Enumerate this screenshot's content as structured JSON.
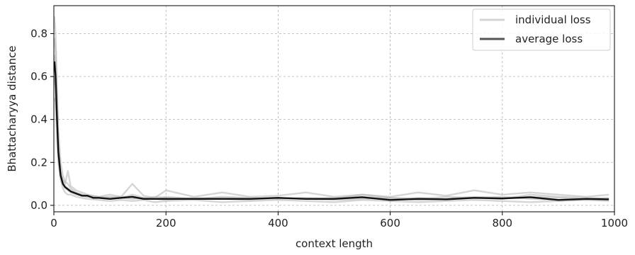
{
  "chart_data": {
    "type": "line",
    "xlabel": "context length",
    "ylabel": "Bhattacharyya distance",
    "xlim": [
      0,
      1000
    ],
    "ylim": [
      -0.03,
      0.93
    ],
    "x_ticks": [
      0,
      200,
      400,
      600,
      800,
      1000
    ],
    "y_ticks": [
      0.0,
      0.2,
      0.4,
      0.6,
      0.8
    ],
    "grid": true,
    "legend_position": "top-right",
    "colors": {
      "individual": "#b3b3b3",
      "average": "#111111"
    },
    "series": [
      {
        "name": "individual loss",
        "style": "light-gray, many overlapping runs",
        "runs": [
          {
            "x": [
              1,
              3,
              5,
              8,
              12,
              16,
              20,
              25,
              30,
              40,
              50,
              60,
              80,
              100,
              120,
              140,
              160,
              180,
              200,
              250,
              300,
              350,
              400,
              450,
              500,
              550,
              600,
              650,
              700,
              750,
              800,
              850,
              900,
              950,
              990
            ],
            "y": [
              0.88,
              0.8,
              0.6,
              0.35,
              0.2,
              0.14,
              0.11,
              0.1,
              0.08,
              0.06,
              0.05,
              0.04,
              0.035,
              0.04,
              0.035,
              0.05,
              0.035,
              0.03,
              0.04,
              0.03,
              0.035,
              0.03,
              0.035,
              0.03,
              0.035,
              0.04,
              0.03,
              0.035,
              0.03,
              0.04,
              0.035,
              0.04,
              0.035,
              0.03,
              0.035
            ]
          },
          {
            "x": [
              1,
              3,
              5,
              8,
              12,
              16,
              20,
              25,
              30,
              40,
              50,
              60,
              80,
              100,
              120,
              140,
              160,
              180,
              200,
              250,
              300,
              350,
              400,
              450,
              500,
              550,
              600,
              650,
              700,
              750,
              800,
              850,
              900,
              950,
              990
            ],
            "y": [
              0.78,
              0.72,
              0.55,
              0.3,
              0.16,
              0.12,
              0.1,
              0.16,
              0.09,
              0.07,
              0.06,
              0.05,
              0.04,
              0.05,
              0.04,
              0.1,
              0.045,
              0.035,
              0.07,
              0.04,
              0.06,
              0.04,
              0.045,
              0.06,
              0.04,
              0.05,
              0.04,
              0.06,
              0.045,
              0.07,
              0.05,
              0.06,
              0.05,
              0.04,
              0.05
            ]
          },
          {
            "x": [
              1,
              3,
              5,
              8,
              12,
              16,
              20,
              25,
              30,
              40,
              50,
              60,
              80,
              100,
              120,
              140,
              160,
              180,
              200,
              250,
              300,
              350,
              400,
              450,
              500,
              550,
              600,
              650,
              700,
              750,
              800,
              850,
              900,
              950,
              990
            ],
            "y": [
              0.7,
              0.65,
              0.45,
              0.22,
              0.12,
              0.08,
              0.06,
              0.05,
              0.05,
              0.04,
              0.035,
              0.03,
              0.025,
              0.02,
              0.025,
              0.02,
              0.025,
              0.015,
              0.02,
              0.025,
              0.015,
              0.02,
              0.025,
              0.02,
              0.015,
              0.025,
              0.02,
              0.015,
              0.02,
              0.025,
              0.02,
              0.015,
              0.02,
              0.025,
              0.02
            ]
          },
          {
            "x": [
              1,
              3,
              5,
              8,
              12,
              16,
              20,
              25,
              30,
              40,
              50,
              60,
              80,
              100,
              120,
              140,
              160,
              180,
              200,
              250,
              300,
              350,
              400,
              450,
              500,
              550,
              600,
              650,
              700,
              750,
              800,
              850,
              900,
              950,
              990
            ],
            "y": [
              0.6,
              0.55,
              0.4,
              0.25,
              0.15,
              0.11,
              0.09,
              0.08,
              0.07,
              0.055,
              0.05,
              0.045,
              0.04,
              0.035,
              0.04,
              0.035,
              0.03,
              0.04,
              0.035,
              0.03,
              0.04,
              0.035,
              0.03,
              0.035,
              0.03,
              0.05,
              0.035,
              0.03,
              0.04,
              0.035,
              0.03,
              0.05,
              0.04,
              0.035,
              0.03
            ]
          },
          {
            "x": [
              1,
              3,
              5,
              8,
              12,
              16,
              20,
              25,
              30,
              40,
              50,
              60,
              80,
              100,
              120,
              140,
              160,
              180,
              200,
              250,
              300,
              350,
              400,
              450,
              500,
              550,
              600,
              650,
              700,
              750,
              800,
              850,
              900,
              950,
              990
            ],
            "y": [
              0.5,
              0.48,
              0.35,
              0.2,
              0.13,
              0.1,
              0.08,
              0.07,
              0.06,
              0.05,
              0.045,
              0.04,
              0.035,
              0.03,
              0.035,
              0.03,
              0.035,
              0.03,
              0.025,
              0.035,
              0.03,
              0.025,
              0.035,
              0.03,
              0.025,
              0.03,
              0.035,
              0.025,
              0.03,
              0.035,
              0.04,
              0.03,
              0.025,
              0.03,
              0.025
            ]
          }
        ]
      },
      {
        "name": "average loss",
        "x": [
          1,
          3,
          5,
          8,
          12,
          16,
          20,
          25,
          30,
          40,
          50,
          60,
          70,
          80,
          100,
          120,
          140,
          160,
          180,
          200,
          250,
          300,
          350,
          400,
          450,
          500,
          550,
          600,
          650,
          700,
          750,
          800,
          850,
          900,
          950,
          990
        ],
        "y": [
          0.67,
          0.6,
          0.44,
          0.25,
          0.14,
          0.1,
          0.085,
          0.075,
          0.065,
          0.055,
          0.045,
          0.045,
          0.035,
          0.035,
          0.03,
          0.035,
          0.04,
          0.03,
          0.03,
          0.03,
          0.03,
          0.03,
          0.03,
          0.035,
          0.03,
          0.03,
          0.038,
          0.025,
          0.03,
          0.028,
          0.035,
          0.032,
          0.038,
          0.025,
          0.03,
          0.028
        ]
      }
    ]
  }
}
